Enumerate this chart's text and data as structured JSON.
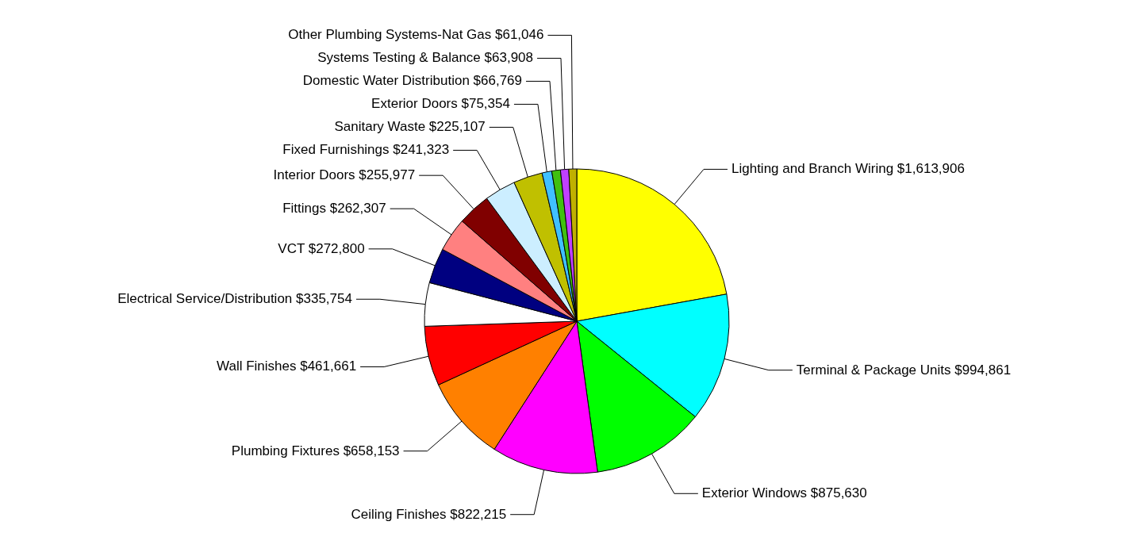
{
  "chart_data": {
    "type": "pie",
    "categories": [
      "Lighting and Branch Wiring",
      "Terminal & Package Units",
      "Exterior Windows",
      "Ceiling Finishes",
      "Plumbing Fixtures",
      "Wall Finishes",
      "Electrical Service/Distribution",
      "VCT",
      "Fittings",
      "Interior Doors",
      "Fixed Furnishings",
      "Sanitary Waste",
      "Exterior Doors",
      "Domestic Water Distribution",
      "Systems Testing & Balance",
      "Other Plumbing Systems-Nat Gas"
    ],
    "values": [
      1613906,
      994861,
      875630,
      822215,
      658153,
      461661,
      335754,
      272800,
      262307,
      255977,
      241323,
      225107,
      75354,
      66769,
      63908,
      61046
    ],
    "value_labels": [
      "$1,613,906",
      "$994,861",
      "$875,630",
      "$822,215",
      "$658,153",
      "$461,661",
      "$335,754",
      "$272,800",
      "$262,307",
      "$255,977",
      "$241,323",
      "$225,107",
      "$75,354",
      "$66,769",
      "$63,908",
      "$61,046"
    ],
    "colors": [
      "#ffff00",
      "#00ffff",
      "#00ff00",
      "#ff00ff",
      "#ff8000",
      "#ff0000",
      "#ffffff",
      "#000080",
      "#ff8080",
      "#800000",
      "#cceeff",
      "#c0c000",
      "#40c0ff",
      "#40c010",
      "#c040ff",
      "#c0b000"
    ]
  }
}
